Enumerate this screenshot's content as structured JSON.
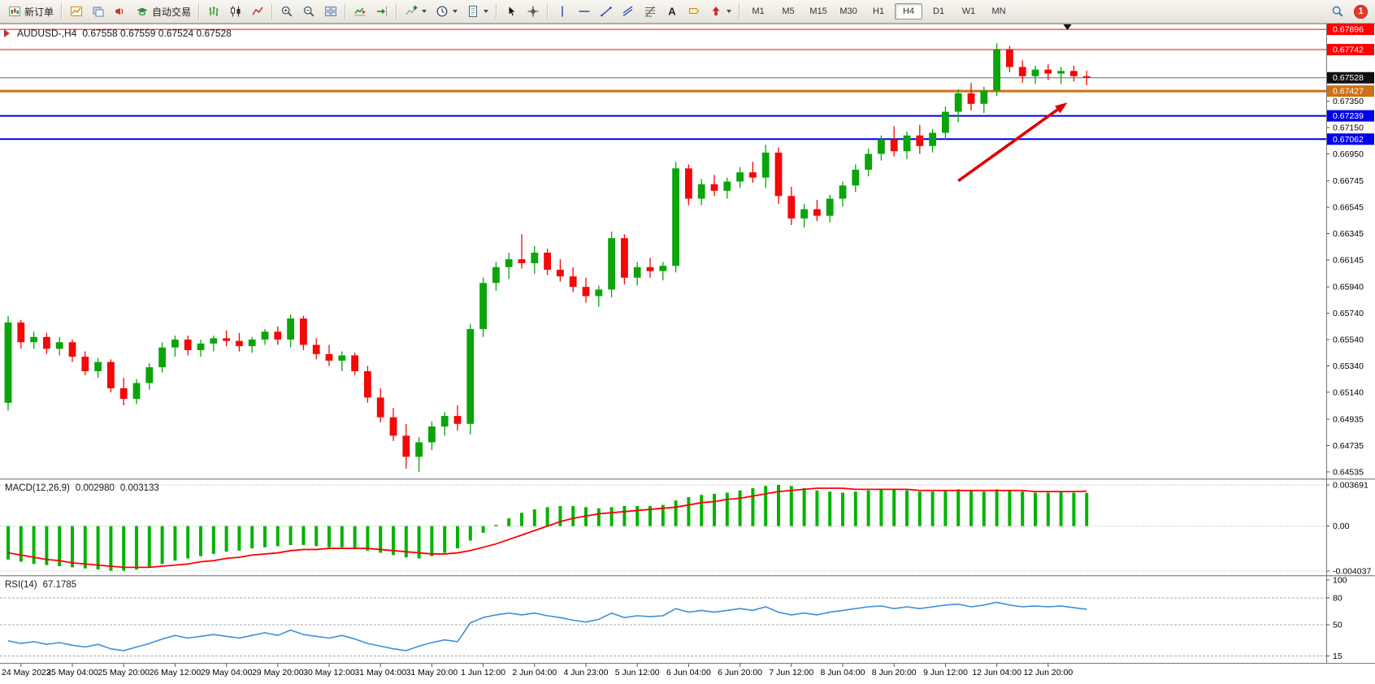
{
  "toolbar": {
    "groups": [
      {
        "name": "trade-group",
        "items": [
          {
            "name": "new-order-button",
            "icon": "new-order-icon",
            "label": "新订单"
          }
        ]
      },
      {
        "name": "windows-group",
        "items": [
          {
            "name": "new-chart-button",
            "icon": "new-chart-icon"
          },
          {
            "name": "profiles-button",
            "icon": "chart-profile-icon"
          },
          {
            "name": "alerts-button",
            "icon": "megaphone-icon"
          },
          {
            "name": "autotrading-button",
            "icon": "autotrading-icon",
            "label": "自动交易"
          }
        ]
      },
      {
        "name": "chart-type-group",
        "items": [
          {
            "name": "bar-chart-button",
            "icon": "bar-chart-icon"
          },
          {
            "name": "candlestick-button",
            "icon": "candlestick-icon"
          },
          {
            "name": "line-chart-button",
            "icon": "line-chart-icon"
          }
        ]
      },
      {
        "name": "zoom-group",
        "items": [
          {
            "name": "zoom-in-button",
            "icon": "zoom-in-icon"
          },
          {
            "name": "zoom-out-button",
            "icon": "zoom-out-icon"
          },
          {
            "name": "tile-windows-button",
            "icon": "tile-windows-icon"
          }
        ]
      },
      {
        "name": "scroll-group",
        "items": [
          {
            "name": "auto-scroll-button",
            "icon": "auto-scroll-icon"
          },
          {
            "name": "chart-shift-button",
            "icon": "chart-shift-icon"
          }
        ]
      },
      {
        "name": "insert-group",
        "items": [
          {
            "name": "indicators-button",
            "icon": "indicators-icon",
            "dropdown": true
          },
          {
            "name": "periods-button",
            "icon": "periods-icon",
            "dropdown": true
          },
          {
            "name": "templates-button",
            "icon": "templates-icon",
            "dropdown": true
          }
        ]
      },
      {
        "name": "pointer-group",
        "items": [
          {
            "name": "cursor-button",
            "icon": "cursor-icon"
          },
          {
            "name": "crosshair-button",
            "icon": "crosshair-icon"
          }
        ]
      },
      {
        "name": "objects-group",
        "items": [
          {
            "name": "vertical-line-button",
            "icon": "vline-icon"
          },
          {
            "name": "horizontal-line-button",
            "icon": "hline-icon"
          },
          {
            "name": "trendline-button",
            "icon": "trendline-icon"
          },
          {
            "name": "channel-button",
            "icon": "channel-icon"
          },
          {
            "name": "fibonacci-button",
            "icon": "fibonacci-icon"
          },
          {
            "name": "text-button",
            "icon": "text-icon"
          },
          {
            "name": "label-button",
            "icon": "label-icon"
          },
          {
            "name": "arrows-button",
            "icon": "arrows-icon",
            "dropdown": true
          }
        ]
      }
    ],
    "timeframes": {
      "items": [
        "M1",
        "M5",
        "M15",
        "M30",
        "H1",
        "H4",
        "D1",
        "W1",
        "MN"
      ],
      "active": "H4"
    },
    "notification_count": "1"
  },
  "chart": {
    "title": "AUDUSD-,H4",
    "ohlc": "0.67558 0.67559 0.67524 0.67528",
    "current_price": "0.67528",
    "price_ticks": [
      "0.67350",
      "0.67150",
      "0.66950",
      "0.66745",
      "0.66545",
      "0.66345",
      "0.66145",
      "0.65940",
      "0.65740",
      "0.65540",
      "0.65340",
      "0.65140",
      "0.64935",
      "0.64735",
      "0.64535"
    ],
    "levels": [
      {
        "price": 0.67896,
        "label": "0.67896",
        "color": "#FF0000",
        "width": 1
      },
      {
        "price": 0.67742,
        "label": "0.67742",
        "color": "#FF0000",
        "width": 1
      },
      {
        "price": 0.67427,
        "label": "0.67427",
        "color": "#CE7017",
        "width": 3
      },
      {
        "price": 0.67239,
        "label": "0.67239",
        "color": "#0000EE",
        "width": 2
      },
      {
        "price": 0.67062,
        "label": "0.67062",
        "color": "#0000EE",
        "width": 2
      }
    ],
    "time_labels": [
      "24 May 2023",
      "25 May 04:00",
      "25 May 20:00",
      "26 May 12:00",
      "29 May 04:00",
      "29 May 20:00",
      "30 May 12:00",
      "31 May 04:00",
      "31 May 20:00",
      "1 Jun 12:00",
      "2 Jun 04:00",
      "4 Jun 23:00",
      "5 Jun 12:00",
      "6 Jun 04:00",
      "6 Jun 20:00",
      "7 Jun 12:00",
      "8 Jun 04:00",
      "8 Jun 20:00",
      "9 Jun 12:00",
      "12 Jun 04:00",
      "12 Jun 20:00"
    ],
    "colors": {
      "up": "#0AA50A",
      "down": "#F40808",
      "rsi": "#3E8FD8",
      "macd_hist": "#00B400",
      "macd_signal": "#FF0000",
      "arrow": "#E00000",
      "current_line": "#6E6E6E"
    }
  },
  "chart_data": {
    "type": "candlestick",
    "symbol": "AUDUSD-",
    "period": "H4",
    "ohlc_current": {
      "open": "0.67558",
      "high": "0.67559",
      "low": "0.67524",
      "close": "0.67528"
    },
    "price_axis_range": [
      0.6451,
      0.67915
    ],
    "candles": [
      [
        0.6506,
        0.6572,
        0.65,
        0.6567
      ],
      [
        0.6567,
        0.6569,
        0.6547,
        0.6552
      ],
      [
        0.6552,
        0.656,
        0.6547,
        0.6556
      ],
      [
        0.6556,
        0.6559,
        0.6543,
        0.6547
      ],
      [
        0.6547,
        0.6556,
        0.6542,
        0.6552
      ],
      [
        0.6552,
        0.6554,
        0.6537,
        0.6541
      ],
      [
        0.6541,
        0.6545,
        0.6527,
        0.653
      ],
      [
        0.653,
        0.654,
        0.6525,
        0.6537
      ],
      [
        0.6537,
        0.6539,
        0.6514,
        0.6517
      ],
      [
        0.6517,
        0.6525,
        0.6504,
        0.6509
      ],
      [
        0.6509,
        0.6524,
        0.6505,
        0.6521
      ],
      [
        0.6521,
        0.6536,
        0.6516,
        0.6533
      ],
      [
        0.6533,
        0.6552,
        0.6529,
        0.6548
      ],
      [
        0.6548,
        0.6557,
        0.6541,
        0.6554
      ],
      [
        0.6554,
        0.6557,
        0.6542,
        0.6546
      ],
      [
        0.6546,
        0.6554,
        0.6541,
        0.6551
      ],
      [
        0.6551,
        0.6557,
        0.6545,
        0.6555
      ],
      [
        0.6555,
        0.6561,
        0.6549,
        0.6553
      ],
      [
        0.6553,
        0.6559,
        0.6545,
        0.6549
      ],
      [
        0.6549,
        0.6556,
        0.6544,
        0.6554
      ],
      [
        0.6554,
        0.6562,
        0.655,
        0.656
      ],
      [
        0.656,
        0.6564,
        0.655,
        0.6554
      ],
      [
        0.6554,
        0.6573,
        0.6548,
        0.657
      ],
      [
        0.657,
        0.6572,
        0.6546,
        0.655
      ],
      [
        0.655,
        0.6555,
        0.6539,
        0.6543
      ],
      [
        0.6543,
        0.655,
        0.6534,
        0.6538
      ],
      [
        0.6538,
        0.6545,
        0.653,
        0.6542
      ],
      [
        0.6542,
        0.6544,
        0.6527,
        0.653
      ],
      [
        0.653,
        0.6534,
        0.6506,
        0.651
      ],
      [
        0.651,
        0.6517,
        0.6491,
        0.6495
      ],
      [
        0.6495,
        0.6502,
        0.6477,
        0.6481
      ],
      [
        0.6481,
        0.649,
        0.6456,
        0.6465
      ],
      [
        0.6465,
        0.648,
        0.64535,
        0.6476
      ],
      [
        0.6476,
        0.6492,
        0.647,
        0.6488
      ],
      [
        0.6488,
        0.6499,
        0.6481,
        0.6496
      ],
      [
        0.6496,
        0.6504,
        0.6485,
        0.649
      ],
      [
        0.649,
        0.6566,
        0.6482,
        0.6562
      ],
      [
        0.6562,
        0.6601,
        0.6556,
        0.6597
      ],
      [
        0.6597,
        0.6613,
        0.6591,
        0.6609
      ],
      [
        0.6609,
        0.662,
        0.66,
        0.6615
      ],
      [
        0.6615,
        0.6634,
        0.6608,
        0.6612
      ],
      [
        0.6612,
        0.6625,
        0.6604,
        0.662
      ],
      [
        0.662,
        0.6623,
        0.6603,
        0.6607
      ],
      [
        0.6607,
        0.6615,
        0.6598,
        0.6602
      ],
      [
        0.6602,
        0.6609,
        0.659,
        0.6594
      ],
      [
        0.6594,
        0.6601,
        0.6582,
        0.6587
      ],
      [
        0.6587,
        0.6595,
        0.6579,
        0.6592
      ],
      [
        0.6592,
        0.6636,
        0.6586,
        0.6631
      ],
      [
        0.6631,
        0.6634,
        0.6596,
        0.6601
      ],
      [
        0.6601,
        0.6613,
        0.6595,
        0.6609
      ],
      [
        0.6609,
        0.6616,
        0.6601,
        0.6606
      ],
      [
        0.6606,
        0.6613,
        0.6599,
        0.661
      ],
      [
        0.661,
        0.6689,
        0.6605,
        0.6684
      ],
      [
        0.6684,
        0.6687,
        0.6656,
        0.6661
      ],
      [
        0.6661,
        0.6676,
        0.6656,
        0.6672
      ],
      [
        0.6672,
        0.6679,
        0.6663,
        0.6667
      ],
      [
        0.6667,
        0.6677,
        0.6661,
        0.6674
      ],
      [
        0.6674,
        0.6685,
        0.6669,
        0.6681
      ],
      [
        0.6681,
        0.6689,
        0.6673,
        0.6677
      ],
      [
        0.6677,
        0.6702,
        0.6669,
        0.6696
      ],
      [
        0.6696,
        0.67,
        0.6657,
        0.6663
      ],
      [
        0.6663,
        0.667,
        0.6641,
        0.6646
      ],
      [
        0.6646,
        0.6657,
        0.6639,
        0.6653
      ],
      [
        0.6653,
        0.666,
        0.6644,
        0.6648
      ],
      [
        0.6648,
        0.6664,
        0.6643,
        0.6661
      ],
      [
        0.6661,
        0.6674,
        0.6655,
        0.6671
      ],
      [
        0.6671,
        0.6687,
        0.6666,
        0.6683
      ],
      [
        0.6683,
        0.6699,
        0.6678,
        0.6695
      ],
      [
        0.6695,
        0.6709,
        0.669,
        0.6706
      ],
      [
        0.6706,
        0.6716,
        0.6693,
        0.6697
      ],
      [
        0.6697,
        0.6712,
        0.6691,
        0.6709
      ],
      [
        0.6709,
        0.6717,
        0.6695,
        0.6701
      ],
      [
        0.6701,
        0.6714,
        0.6696,
        0.6711
      ],
      [
        0.6711,
        0.6731,
        0.6706,
        0.6727
      ],
      [
        0.6727,
        0.6744,
        0.6719,
        0.6741
      ],
      [
        0.6741,
        0.6749,
        0.6728,
        0.6733
      ],
      [
        0.6733,
        0.6746,
        0.6726,
        0.6743
      ],
      [
        0.6743,
        0.6779,
        0.6739,
        0.6774
      ],
      [
        0.6774,
        0.6777,
        0.6757,
        0.6761
      ],
      [
        0.6761,
        0.6766,
        0.6749,
        0.6754
      ],
      [
        0.6754,
        0.6762,
        0.6748,
        0.6759
      ],
      [
        0.6759,
        0.6763,
        0.6751,
        0.6756
      ],
      [
        0.6756,
        0.6761,
        0.6748,
        0.6758
      ],
      [
        0.6758,
        0.6762,
        0.675,
        0.6754
      ],
      [
        0.6754,
        0.6758,
        0.6747,
        0.67528
      ]
    ],
    "indicators": {
      "macd": {
        "name": "MACD(12,26,9)",
        "value_main": "0.002980",
        "value_signal": "0.003133",
        "scale_labels": [
          "0.003691",
          "0.00",
          "-0.004037"
        ],
        "scale_range": [
          -0.004037,
          0.003691
        ],
        "hist": [
          -0.003,
          -0.0032,
          -0.0034,
          -0.0035,
          -0.0036,
          -0.0037,
          -0.0038,
          -0.0039,
          -0.004,
          -0.004,
          -0.0039,
          -0.0037,
          -0.0034,
          -0.0031,
          -0.0029,
          -0.0027,
          -0.0025,
          -0.0023,
          -0.0022,
          -0.002,
          -0.0019,
          -0.0018,
          -0.0017,
          -0.0017,
          -0.0018,
          -0.0019,
          -0.0019,
          -0.002,
          -0.0022,
          -0.0024,
          -0.0026,
          -0.0028,
          -0.0029,
          -0.0027,
          -0.0024,
          -0.002,
          -0.0013,
          -0.0006,
          0.0001,
          0.0007,
          0.0012,
          0.0015,
          0.0017,
          0.0018,
          0.0018,
          0.0017,
          0.0016,
          0.0017,
          0.0018,
          0.0018,
          0.0018,
          0.0019,
          0.0023,
          0.0026,
          0.0028,
          0.0029,
          0.003,
          0.0032,
          0.0034,
          0.0036,
          0.0037,
          0.0036,
          0.0034,
          0.0032,
          0.0031,
          0.003,
          0.0031,
          0.0032,
          0.0033,
          0.0033,
          0.0032,
          0.0031,
          0.0031,
          0.0032,
          0.0033,
          0.0032,
          0.0031,
          0.0033,
          0.0032,
          0.0031,
          0.003,
          0.003,
          0.0031,
          0.003,
          0.00298
        ],
        "signal": [
          -0.0024,
          -0.0026,
          -0.0028,
          -0.003,
          -0.0031,
          -0.0033,
          -0.0034,
          -0.0035,
          -0.0036,
          -0.0037,
          -0.0037,
          -0.0037,
          -0.0036,
          -0.0035,
          -0.0034,
          -0.0032,
          -0.0031,
          -0.0029,
          -0.0028,
          -0.0026,
          -0.0025,
          -0.0024,
          -0.0022,
          -0.0021,
          -0.0021,
          -0.002,
          -0.002,
          -0.002,
          -0.002,
          -0.0021,
          -0.0022,
          -0.0023,
          -0.0024,
          -0.0025,
          -0.0025,
          -0.0024,
          -0.0022,
          -0.0019,
          -0.0016,
          -0.0012,
          -0.0008,
          -0.0004,
          0.0,
          0.0004,
          0.0007,
          0.0009,
          0.0011,
          0.0012,
          0.0013,
          0.0014,
          0.0015,
          0.0016,
          0.0017,
          0.0019,
          0.0021,
          0.0022,
          0.0024,
          0.0025,
          0.0027,
          0.0029,
          0.0031,
          0.0032,
          0.0033,
          0.0034,
          0.0034,
          0.0034,
          0.0033,
          0.0033,
          0.0033,
          0.0033,
          0.0033,
          0.0032,
          0.0032,
          0.0032,
          0.0032,
          0.0032,
          0.0032,
          0.0032,
          0.0032,
          0.0032,
          0.0031,
          0.0031,
          0.0031,
          0.0031,
          0.003133
        ]
      },
      "rsi": {
        "name": "RSI(14)",
        "value": "67.1785",
        "scale_labels": [
          "100",
          "80",
          "50",
          "15"
        ],
        "levels": [
          80,
          50,
          15
        ],
        "range": [
          10,
          100
        ],
        "values": [
          32,
          29,
          31,
          28,
          30,
          27,
          25,
          28,
          23,
          21,
          25,
          29,
          34,
          38,
          35,
          37,
          39,
          37,
          35,
          38,
          41,
          38,
          44,
          39,
          37,
          35,
          38,
          34,
          29,
          26,
          23,
          21,
          26,
          30,
          33,
          31,
          52,
          58,
          61,
          63,
          61,
          63,
          60,
          58,
          55,
          53,
          56,
          63,
          58,
          60,
          59,
          60,
          68,
          64,
          66,
          64,
          66,
          68,
          66,
          70,
          64,
          61,
          63,
          61,
          64,
          66,
          68,
          70,
          71,
          68,
          70,
          68,
          70,
          72,
          73,
          70,
          72,
          75,
          72,
          70,
          71,
          70,
          71,
          69,
          67.18
        ]
      }
    },
    "annotations": {
      "arrow": {
        "from": {
          "bar": 74,
          "price": 0.66745
        },
        "to": {
          "bar": 82.5,
          "price": 0.6734
        }
      },
      "top_marker_bar": 82.5
    }
  }
}
